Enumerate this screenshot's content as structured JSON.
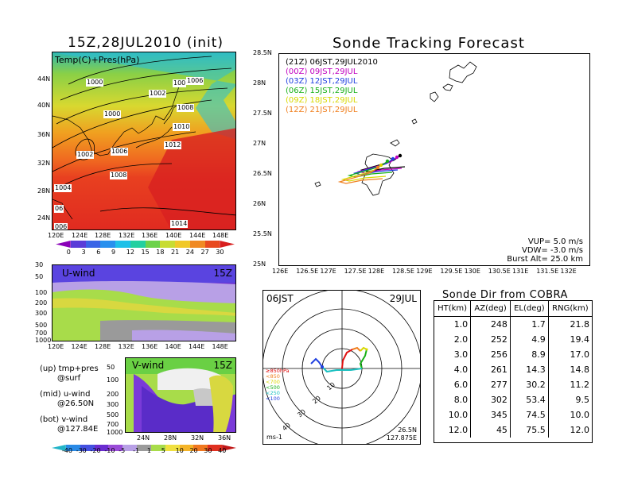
{
  "left_title": "15Z,28JUL2010 (init)",
  "map_label": "Temp(C)+Pres(hPa)",
  "map_lat_ticks": [
    "44N",
    "40N",
    "36N",
    "32N",
    "28N",
    "24N"
  ],
  "map_lon_ticks": [
    "120E",
    "124E",
    "128E",
    "132E",
    "136E",
    "140E",
    "144E",
    "148E"
  ],
  "isobar_labels": [
    "1000",
    "1006",
    "1002",
    "1008",
    "1000",
    "1010",
    "1002",
    "1006",
    "1012",
    "1008",
    "1004",
    "06",
    "006",
    "1014",
    "100"
  ],
  "temp_colorbar": {
    "values": [
      "0",
      "3",
      "6",
      "9",
      "12",
      "15",
      "18",
      "21",
      "24",
      "27",
      "30"
    ],
    "colors": [
      "#8a00b8",
      "#5a3cd8",
      "#3a64e6",
      "#2890ee",
      "#1ec0e8",
      "#22d0a0",
      "#6cd24a",
      "#c8dc32",
      "#f0c828",
      "#f08a24",
      "#e84a20",
      "#d81e1e"
    ]
  },
  "u_wind": {
    "label": "U-wind",
    "time": "15Z",
    "y_ticks": [
      "30",
      "50",
      "100",
      "200",
      "300",
      "500",
      "700",
      "1000"
    ],
    "x_ticks": [
      "120E",
      "124E",
      "128E",
      "132E",
      "136E",
      "140E",
      "144E",
      "148E"
    ]
  },
  "v_wind": {
    "label": "V-wind",
    "time": "15Z",
    "y_ticks": [
      "50",
      "100",
      "200",
      "300",
      "500",
      "700",
      "1000"
    ],
    "x_ticks": [
      "24N",
      "28N",
      "32N",
      "36N"
    ]
  },
  "notes": [
    {
      "line1": "(up) tmp+pres",
      "line2": "@surf"
    },
    {
      "line1": "(mid) u-wind",
      "line2": "@26.50N"
    },
    {
      "line1": "(bot) v-wind",
      "line2": "@127.84E"
    }
  ],
  "wind_colorbar": {
    "values": [
      "-40",
      "-30",
      "-20",
      "-10",
      "-5",
      "-1",
      "1",
      "5",
      "10",
      "20",
      "30",
      "40"
    ],
    "colors": [
      "#22b4c8",
      "#2a8ae6",
      "#4450e0",
      "#6a2cd0",
      "#9a4cd8",
      "#b8a0e6",
      "#9a9a9a",
      "#a8dc4a",
      "#f0e040",
      "#f4b428",
      "#f07820",
      "#e03020",
      "#c01818"
    ]
  },
  "track": {
    "title": "Sonde Tracking Forecast",
    "lat_ticks": [
      "28.5N",
      "28N",
      "27.5N",
      "27N",
      "26.5N",
      "26N",
      "25.5N",
      "25N"
    ],
    "lon_ticks": [
      "126E",
      "126.5E",
      "127E",
      "127.5E",
      "128E",
      "128.5E",
      "129E",
      "129.5E",
      "130E",
      "130.5E",
      "131E",
      "131.5E",
      "132E"
    ],
    "legend": [
      {
        "text": "(21Z)  06JST,29JUL2010",
        "color": "#000000"
      },
      {
        "text": "(00Z)  09JST,29JUL",
        "color": "#c000c0"
      },
      {
        "text": "(03Z)  12JST,29JUL",
        "color": "#2040e0"
      },
      {
        "text": "(06Z)  15JST,29JUL",
        "color": "#18b018"
      },
      {
        "text": "(09Z)  18JST,29JUL",
        "color": "#d8d800"
      },
      {
        "text": "(12Z)  21JST,29JUL",
        "color": "#f08020"
      }
    ],
    "vup": "VUP=  5.0 m/s",
    "vdw": "VDW= -3.0 m/s",
    "burst": "Burst Alt= 25.0 km"
  },
  "polar": {
    "left": "06JST",
    "right": "29JUL",
    "unit": "ms-1",
    "lat": "26.5N",
    "lon": "127.875E",
    "ring_labels": [
      "10",
      "20",
      "30",
      "40"
    ],
    "layers": [
      {
        "text": "≥850hPa",
        "color": "#e01010"
      },
      {
        "text": "<850",
        "color": "#f08020"
      },
      {
        "text": "<700",
        "color": "#d8d800"
      },
      {
        "text": "<500",
        "color": "#18b018"
      },
      {
        "text": "<250",
        "color": "#18c0c0"
      },
      {
        "text": "<100",
        "color": "#2040e0"
      }
    ]
  },
  "sonde_dir": {
    "title": "Sonde Dir from COBRA",
    "headers": [
      "HT(km)",
      "AZ(deg)",
      "EL(deg)",
      "RNG(km)"
    ],
    "rows": [
      [
        "1.0",
        "248",
        "1.7",
        "21.8"
      ],
      [
        "2.0",
        "252",
        "4.9",
        "19.4"
      ],
      [
        "3.0",
        "256",
        "8.9",
        "17.0"
      ],
      [
        "4.0",
        "261",
        "14.3",
        "14.8"
      ],
      [
        "6.0",
        "277",
        "30.2",
        "11.2"
      ],
      [
        "8.0",
        "302",
        "53.4",
        "9.5"
      ],
      [
        "10.0",
        "345",
        "74.5",
        "10.0"
      ],
      [
        "12.0",
        "45",
        "75.5",
        "12.0"
      ]
    ]
  }
}
